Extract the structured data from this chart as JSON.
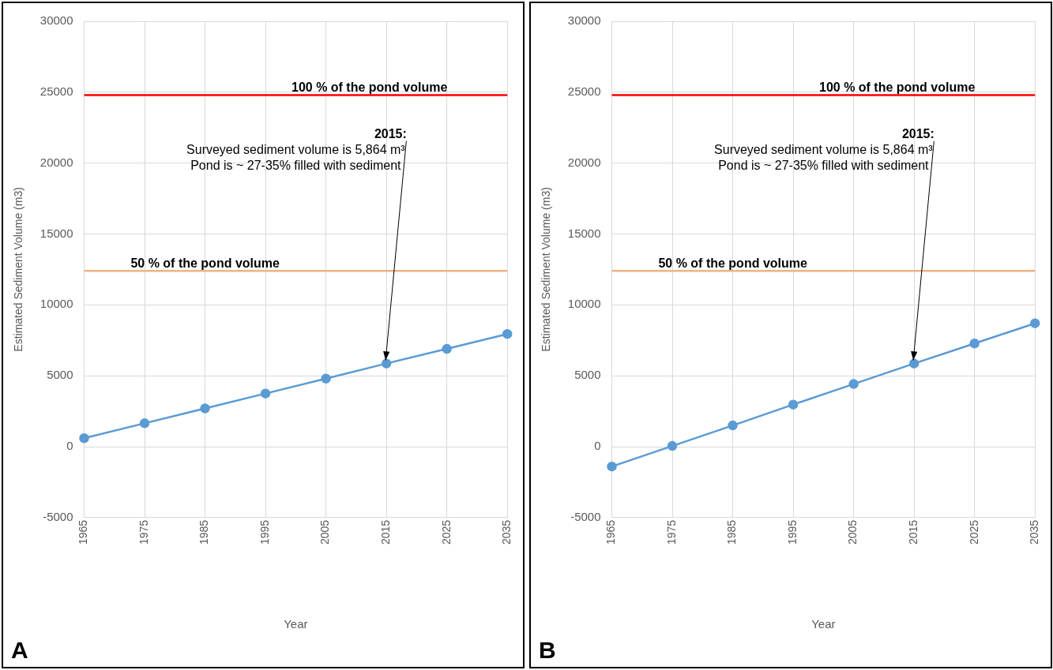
{
  "chart_data": [
    {
      "type": "line",
      "xlabel": "Year",
      "ylabel": "Estimated Sediment Volume (m3)",
      "categories": [
        "1965",
        "1975",
        "1985",
        "1995",
        "2005",
        "2015",
        "2025",
        "2035"
      ],
      "series": [
        {
          "color": "#5b9bd5",
          "values": [
            600,
            1650,
            2700,
            3750,
            4800,
            5864,
            6900,
            7950
          ]
        }
      ],
      "ylim": [
        -5000,
        30000
      ],
      "yticks": [
        -5000,
        0,
        5000,
        10000,
        15000,
        20000,
        25000,
        30000
      ],
      "grid": true,
      "marker": "circle",
      "line_style": "solid",
      "legend": false,
      "ref_lines": [
        {
          "axis": "y",
          "value": 24800,
          "label": "100 % of the pond volume",
          "color": "#ff0000"
        },
        {
          "axis": "y",
          "value": 12400,
          "label": "50 % of the pond volume",
          "color": "#f4b183"
        }
      ],
      "annotations": [
        {
          "text": "2015:\nSurveyed sediment volume is 5,864 m³\nPond is ~ 27-35% filled with sediment",
          "x": "2015",
          "y": 5864
        },
        "A"
      ]
    },
    {
      "type": "line",
      "xlabel": "Year",
      "ylabel": "Estimated Sediment Volume (m3)",
      "categories": [
        "1965",
        "1975",
        "1985",
        "1995",
        "2005",
        "2015",
        "2025",
        "2035"
      ],
      "series": [
        {
          "color": "#5b9bd5",
          "values": [
            -1400,
            50,
            1500,
            2970,
            4420,
            5864,
            7280,
            8700
          ]
        }
      ],
      "ylim": [
        -5000,
        30000
      ],
      "yticks": [
        -5000,
        0,
        5000,
        10000,
        15000,
        20000,
        25000,
        30000
      ],
      "grid": true,
      "marker": "circle",
      "line_style": "solid",
      "legend": false,
      "ref_lines": [
        {
          "axis": "y",
          "value": 24800,
          "label": "100 % of the pond volume",
          "color": "#ff0000"
        },
        {
          "axis": "y",
          "value": 12400,
          "label": "50 % of the pond volume",
          "color": "#f4b183"
        }
      ],
      "annotations": [
        {
          "text": "2015:\nSurveyed sediment volume is 5,864 m³\nPond is ~ 27-35% filled with sediment",
          "x": "2015",
          "y": 5864
        },
        "B"
      ]
    }
  ]
}
